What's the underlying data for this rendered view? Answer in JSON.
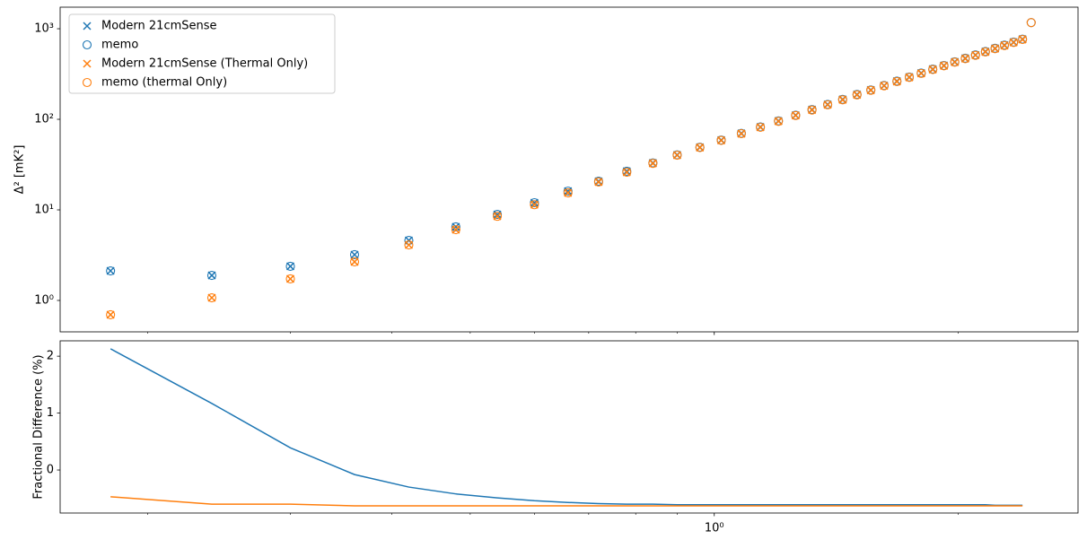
{
  "chart_data": [
    {
      "type": "scatter",
      "xscale": "log",
      "yscale": "log",
      "ylabel": "Δ² [mK²]",
      "xlim": [
        0.156,
        2.81
      ],
      "ylim": [
        0.45,
        1730
      ],
      "yticks": [
        {
          "value": 1,
          "label": "10⁰"
        },
        {
          "value": 10,
          "label": "10¹"
        },
        {
          "value": 100,
          "label": "10²"
        },
        {
          "value": 1000,
          "label": "10³"
        }
      ],
      "sharex": true,
      "legend": "upper left",
      "series": [
        {
          "name": "Modern 21cmSense",
          "color": "#1f77b4",
          "marker": "x",
          "x": [
            0.18,
            0.24,
            0.3,
            0.36,
            0.42,
            0.48,
            0.54,
            0.6,
            0.66,
            0.72,
            0.78,
            0.84,
            0.9,
            0.96,
            1.02,
            1.08,
            1.14,
            1.2,
            1.26,
            1.32,
            1.38,
            1.44,
            1.5,
            1.56,
            1.62,
            1.68,
            1.74,
            1.8,
            1.86,
            1.92,
            1.98,
            2.04,
            2.1,
            2.16,
            2.22,
            2.28,
            2.34,
            2.4
          ],
          "values": [
            2.12,
            1.89,
            2.38,
            3.2,
            4.6,
            6.5,
            8.9,
            12.0,
            16.1,
            20.7,
            26.7,
            33.0,
            40.5,
            49.2,
            59,
            70,
            82.3,
            96,
            111,
            128,
            146,
            166,
            188,
            211,
            236,
            264,
            293,
            324,
            358,
            393,
            431,
            472,
            514,
            560,
            608,
            659,
            712,
            768
          ]
        },
        {
          "name": "memo",
          "color": "#1f77b4",
          "marker": "o",
          "x": [
            0.18,
            0.24,
            0.3,
            0.36,
            0.42,
            0.48,
            0.54,
            0.6,
            0.66,
            0.72,
            0.78,
            0.84,
            0.9,
            0.96,
            1.02,
            1.08,
            1.14,
            1.2,
            1.26,
            1.32,
            1.38,
            1.44,
            1.5,
            1.56,
            1.62,
            1.68,
            1.74,
            1.8,
            1.86,
            1.92,
            1.98,
            2.04,
            2.1,
            2.16,
            2.22,
            2.28,
            2.34,
            2.4,
            2.46
          ],
          "values": [
            2.12,
            1.89,
            2.38,
            3.2,
            4.6,
            6.5,
            8.9,
            12.0,
            16.1,
            20.7,
            26.7,
            33.0,
            40.5,
            49.2,
            59,
            70,
            82.3,
            96,
            111,
            128,
            146,
            166,
            188,
            211,
            236,
            264,
            293,
            324,
            358,
            393,
            431,
            472,
            514,
            560,
            608,
            659,
            712,
            768,
            1170
          ]
        },
        {
          "name": "Modern 21cmSense (Thermal Only)",
          "color": "#ff7f0e",
          "marker": "x",
          "x": [
            0.18,
            0.24,
            0.3,
            0.36,
            0.42,
            0.48,
            0.54,
            0.6,
            0.66,
            0.72,
            0.78,
            0.84,
            0.9,
            0.96,
            1.02,
            1.08,
            1.14,
            1.2,
            1.26,
            1.32,
            1.38,
            1.44,
            1.5,
            1.56,
            1.62,
            1.68,
            1.74,
            1.8,
            1.86,
            1.92,
            1.98,
            2.04,
            2.1,
            2.16,
            2.22,
            2.28,
            2.34,
            2.4
          ],
          "values": [
            0.695,
            1.07,
            1.73,
            2.67,
            4.1,
            6.05,
            8.5,
            11.4,
            15.4,
            20.3,
            26,
            32.6,
            40.1,
            48.7,
            58.4,
            69.3,
            81.5,
            95.0,
            110,
            126.5,
            144.5,
            164,
            186,
            209,
            234,
            261,
            290,
            321,
            354,
            389,
            427,
            467,
            509,
            554,
            602,
            652,
            705,
            760
          ]
        },
        {
          "name": "memo (thermal Only)",
          "color": "#ff7f0e",
          "marker": "o",
          "x": [
            0.18,
            0.24,
            0.3,
            0.36,
            0.42,
            0.48,
            0.54,
            0.6,
            0.66,
            0.72,
            0.78,
            0.84,
            0.9,
            0.96,
            1.02,
            1.08,
            1.14,
            1.2,
            1.26,
            1.32,
            1.38,
            1.44,
            1.5,
            1.56,
            1.62,
            1.68,
            1.74,
            1.8,
            1.86,
            1.92,
            1.98,
            2.04,
            2.1,
            2.16,
            2.22,
            2.28,
            2.34,
            2.4,
            2.46
          ],
          "values": [
            0.695,
            1.07,
            1.73,
            2.67,
            4.1,
            6.05,
            8.5,
            11.4,
            15.4,
            20.3,
            26,
            32.6,
            40.1,
            48.7,
            58.4,
            69.3,
            81.5,
            95.0,
            110,
            126.5,
            144.5,
            164,
            186,
            209,
            234,
            261,
            290,
            321,
            354,
            389,
            427,
            467,
            509,
            554,
            602,
            652,
            705,
            760,
            1170
          ]
        }
      ]
    },
    {
      "type": "line",
      "xscale": "log",
      "ylabel": "Fractional Difference (%)",
      "xlim": [
        0.156,
        2.81
      ],
      "ylim": [
        -0.756,
        2.27
      ],
      "xticks": [
        {
          "value": 1,
          "label": "10⁰"
        }
      ],
      "xminorticks": [
        0.2,
        0.3,
        0.4,
        0.5,
        0.6,
        0.7,
        0.8,
        0.9,
        2
      ],
      "yticks": [
        0,
        1,
        2
      ],
      "series": [
        {
          "color": "#1f77b4",
          "x": [
            0.18,
            0.24,
            0.3,
            0.36,
            0.42,
            0.48,
            0.54,
            0.6,
            0.66,
            0.72,
            0.78,
            0.84,
            0.9,
            0.96,
            1.02,
            1.08,
            1.14,
            1.2,
            1.26,
            1.32,
            1.38,
            1.44,
            1.5,
            1.56,
            1.62,
            1.68,
            1.74,
            1.8,
            1.86,
            1.92,
            1.98,
            2.04,
            2.1,
            2.16,
            2.22,
            2.28,
            2.34,
            2.4
          ],
          "values": [
            2.13,
            1.17,
            0.39,
            -0.08,
            -0.3,
            -0.42,
            -0.49,
            -0.54,
            -0.57,
            -0.59,
            -0.6,
            -0.6,
            -0.61,
            -0.61,
            -0.61,
            -0.61,
            -0.61,
            -0.61,
            -0.61,
            -0.61,
            -0.61,
            -0.61,
            -0.61,
            -0.61,
            -0.61,
            -0.61,
            -0.61,
            -0.61,
            -0.61,
            -0.61,
            -0.61,
            -0.61,
            -0.61,
            -0.61,
            -0.62,
            -0.62,
            -0.62,
            -0.62
          ]
        },
        {
          "color": "#ff7f0e",
          "x": [
            0.18,
            0.24,
            0.3,
            0.36,
            0.42,
            0.48,
            0.54,
            0.6,
            0.66,
            0.72,
            0.78,
            0.84,
            0.9,
            0.96,
            1.02,
            1.08,
            1.14,
            1.2,
            1.26,
            1.32,
            1.38,
            1.44,
            1.5,
            1.56,
            1.62,
            1.68,
            1.74,
            1.8,
            1.86,
            1.92,
            1.98,
            2.04,
            2.1,
            2.16,
            2.22,
            2.28,
            2.34,
            2.4
          ],
          "values": [
            -0.47,
            -0.6,
            -0.6,
            -0.63,
            -0.63,
            -0.63,
            -0.63,
            -0.63,
            -0.63,
            -0.63,
            -0.63,
            -0.63,
            -0.63,
            -0.63,
            -0.63,
            -0.63,
            -0.63,
            -0.63,
            -0.63,
            -0.63,
            -0.63,
            -0.63,
            -0.63,
            -0.63,
            -0.63,
            -0.63,
            -0.63,
            -0.63,
            -0.63,
            -0.63,
            -0.63,
            -0.63,
            -0.63,
            -0.63,
            -0.63,
            -0.63,
            -0.63,
            -0.63
          ]
        }
      ]
    }
  ]
}
